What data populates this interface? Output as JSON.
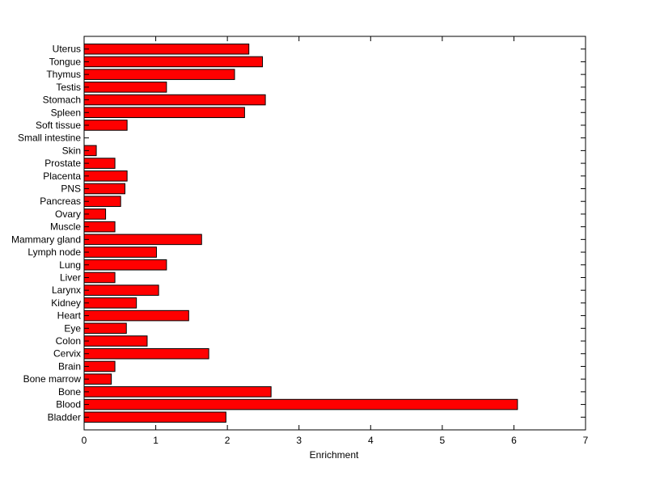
{
  "chart_data": {
    "type": "bar",
    "orientation": "horizontal",
    "categories": [
      "Bladder",
      "Blood",
      "Bone",
      "Bone marrow",
      "Brain",
      "Cervix",
      "Colon",
      "Eye",
      "Heart",
      "Kidney",
      "Larynx",
      "Liver",
      "Lung",
      "Lymph node",
      "Mammary gland",
      "Muscle",
      "Ovary",
      "Pancreas",
      "PNS",
      "Placenta",
      "Prostate",
      "Skin",
      "Small intestine",
      "Soft tissue",
      "Spleen",
      "Stomach",
      "Testis",
      "Thymus",
      "Tongue",
      "Uterus"
    ],
    "values": [
      1.98,
      6.05,
      2.61,
      0.38,
      0.43,
      1.74,
      0.88,
      0.59,
      1.46,
      0.73,
      1.04,
      0.43,
      1.15,
      1.01,
      1.64,
      0.43,
      0.3,
      0.51,
      0.57,
      0.6,
      0.43,
      0.17,
      0,
      0.6,
      2.24,
      2.53,
      1.15,
      2.1,
      2.49,
      2.3
    ],
    "xlabel": "Enrichment",
    "ylabel": "",
    "title": "",
    "xlim": [
      0,
      7
    ],
    "xticks": [
      0,
      1,
      2,
      3,
      4,
      5,
      6,
      7
    ],
    "bar_color": "#ff0000",
    "edge_color": "#000000",
    "grid": false
  }
}
